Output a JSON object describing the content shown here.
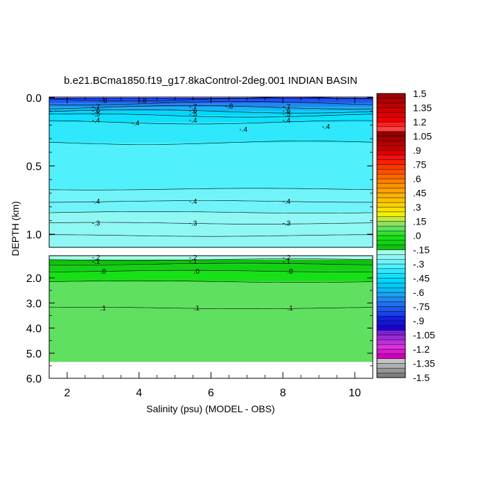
{
  "chart_data": {
    "type": "heatmap",
    "title": "b.e21.BCma1850.f19_g17.8kaControl-2deg.001 INDIAN BASIN",
    "xlabel": "Salinity (psu) (MODEL - OBS)",
    "ylabel": "DEPTH (km)",
    "x_ticks": [
      2,
      4,
      6,
      8,
      10
    ],
    "xlim": [
      1.5,
      10.5
    ],
    "upper_panel": {
      "ylim": [
        0.0,
        1.1
      ],
      "y_ticks": [
        "0.0",
        "0.5",
        "1.0"
      ],
      "bands": [
        {
          "from": 0.0,
          "to": 0.01,
          "value": -0.9
        },
        {
          "from": 0.01,
          "to": 0.04,
          "value": -0.8
        },
        {
          "from": 0.04,
          "to": 0.07,
          "value": -0.7
        },
        {
          "from": 0.07,
          "to": 0.1,
          "value": -0.6
        },
        {
          "from": 0.1,
          "to": 0.13,
          "value": -0.5
        },
        {
          "from": 0.13,
          "to": 0.18,
          "value": -0.45
        },
        {
          "from": 0.18,
          "to": 0.33,
          "value": -0.4
        },
        {
          "from": 0.33,
          "to": 0.67,
          "value": -0.35
        },
        {
          "from": 0.67,
          "to": 0.84,
          "value": -0.3
        },
        {
          "from": 0.84,
          "to": 1.1,
          "value": -0.25
        }
      ],
      "contours": [
        {
          "depth": 0.01
        },
        {
          "depth": 0.04
        },
        {
          "depth": 0.07
        },
        {
          "depth": 0.1
        },
        {
          "depth": 0.13
        },
        {
          "depth": 0.18
        },
        {
          "depth": 0.33
        },
        {
          "depth": 0.67
        },
        {
          "depth": 0.76
        },
        {
          "depth": 0.84
        },
        {
          "depth": 0.92
        },
        {
          "depth": 1.01
        }
      ],
      "contour_labels": [
        {
          "x": 3.0,
          "depth": 0.02,
          "text": "-.8"
        },
        {
          "x": 4.1,
          "depth": 0.02,
          "text": "-.8"
        },
        {
          "x": 6.5,
          "depth": 0.06,
          "text": "-.8"
        },
        {
          "x": 2.8,
          "depth": 0.065,
          "text": "-.7"
        },
        {
          "x": 2.8,
          "depth": 0.095,
          "text": "-.6"
        },
        {
          "x": 2.8,
          "depth": 0.12,
          "text": "-.5"
        },
        {
          "x": 2.8,
          "depth": 0.165,
          "text": "-.4"
        },
        {
          "x": 5.5,
          "depth": 0.065,
          "text": "-.7"
        },
        {
          "x": 5.5,
          "depth": 0.095,
          "text": "-.6"
        },
        {
          "x": 5.5,
          "depth": 0.12,
          "text": "-.5"
        },
        {
          "x": 5.5,
          "depth": 0.165,
          "text": "-.4"
        },
        {
          "x": 8.1,
          "depth": 0.065,
          "text": "-.7"
        },
        {
          "x": 8.1,
          "depth": 0.095,
          "text": "-.6"
        },
        {
          "x": 8.1,
          "depth": 0.12,
          "text": "-.5"
        },
        {
          "x": 8.1,
          "depth": 0.165,
          "text": "-.4"
        },
        {
          "x": 3.9,
          "depth": 0.185,
          "text": "-.4"
        },
        {
          "x": 6.9,
          "depth": 0.23,
          "text": "-.4"
        },
        {
          "x": 9.2,
          "depth": 0.21,
          "text": "-.4"
        },
        {
          "x": 2.8,
          "depth": 0.76,
          "text": "-.4"
        },
        {
          "x": 5.5,
          "depth": 0.76,
          "text": "-.4"
        },
        {
          "x": 8.1,
          "depth": 0.76,
          "text": "-.4"
        },
        {
          "x": 2.8,
          "depth": 0.92,
          "text": "-.3"
        },
        {
          "x": 5.5,
          "depth": 0.92,
          "text": "-.3"
        },
        {
          "x": 8.1,
          "depth": 0.92,
          "text": "-.3"
        }
      ]
    },
    "lower_panel": {
      "ylim": [
        1.0,
        6.0
      ],
      "y_ticks": [
        "2.0",
        "3.0",
        "4.0",
        "5.0",
        "6.0"
      ],
      "bands": [
        {
          "from": 1.0,
          "to": 1.18,
          "value": -0.2
        },
        {
          "from": 1.18,
          "to": 1.38,
          "value": -0.15
        },
        {
          "from": 1.38,
          "to": 1.7,
          "value": -0.1
        },
        {
          "from": 1.7,
          "to": 2.15,
          "value": -0.05
        },
        {
          "from": 2.15,
          "to": 5.35,
          "value": 0.05
        }
      ],
      "no_data_below_depth": 5.35,
      "contours": [
        {
          "depth": 1.18
        },
        {
          "depth": 1.38
        },
        {
          "depth": 1.7
        },
        {
          "depth": 2.15
        },
        {
          "depth": 3.2
        }
      ],
      "contour_labels": [
        {
          "x": 2.8,
          "depth": 1.08,
          "text": "-.2"
        },
        {
          "x": 5.5,
          "depth": 1.08,
          "text": "-.2"
        },
        {
          "x": 8.1,
          "depth": 1.08,
          "text": "-.2"
        },
        {
          "x": 2.8,
          "depth": 1.27,
          "text": "-.1"
        },
        {
          "x": 5.5,
          "depth": 1.27,
          "text": "-.1"
        },
        {
          "x": 8.1,
          "depth": 1.27,
          "text": "-.1"
        },
        {
          "x": 3.0,
          "depth": 1.7,
          "text": ".0"
        },
        {
          "x": 5.6,
          "depth": 1.7,
          "text": ".0"
        },
        {
          "x": 8.2,
          "depth": 1.7,
          "text": ".0"
        },
        {
          "x": 3.0,
          "depth": 3.2,
          "text": ".1"
        },
        {
          "x": 5.6,
          "depth": 3.2,
          "text": ".1"
        },
        {
          "x": 8.2,
          "depth": 3.2,
          "text": ".1"
        }
      ]
    },
    "colorbar": {
      "min": -1.5,
      "max": 1.5,
      "step": 0.05,
      "labels": [
        "1.5",
        "1.35",
        "1.2",
        "1.05",
        ".9",
        ".75",
        ".6",
        ".45",
        ".3",
        ".15",
        ".0",
        "-.15",
        "-.3",
        "-.45",
        "-.6",
        "-.75",
        "-.9",
        "-1.05",
        "-1.2",
        "-1.35",
        "-1.5"
      ],
      "colors": [
        "#7f7f7f",
        "#969696",
        "#aeaeae",
        "#c4c4c4",
        "#cc00bb",
        "#d81ad0",
        "#e030e0",
        "#bb30d8",
        "#9a28d8",
        "#7a20d4",
        "#1a00cc",
        "#1414d8",
        "#1020e0",
        "#1a40e8",
        "#1e58ea",
        "#1f70ec",
        "#1f88ee",
        "#1ea0f0",
        "#10b8f4",
        "#00c8f8",
        "#00d8fa",
        "#10e0fc",
        "#30e8fc",
        "#50f0fc",
        "#70f4fa",
        "#90f8f4",
        "#a8fae8",
        "#10c010",
        "#14d014",
        "#18e018",
        "#30e030",
        "#60e060",
        "#90e060",
        "#c0e840",
        "#f0f000",
        "#f8e000",
        "#fcd000",
        "#fcc000",
        "#fcb000",
        "#fca000",
        "#fc9000",
        "#fc8000",
        "#fc6800",
        "#fc5000",
        "#fc3800",
        "#fc2000",
        "#f41010",
        "#e00000",
        "#c80000",
        "#b40000",
        "#a00000",
        "#900000",
        "#ff4040",
        "#ff2020",
        "#f00000",
        "#e00000",
        "#cc0000",
        "#c00000",
        "#b00000",
        "#a00000"
      ]
    }
  }
}
